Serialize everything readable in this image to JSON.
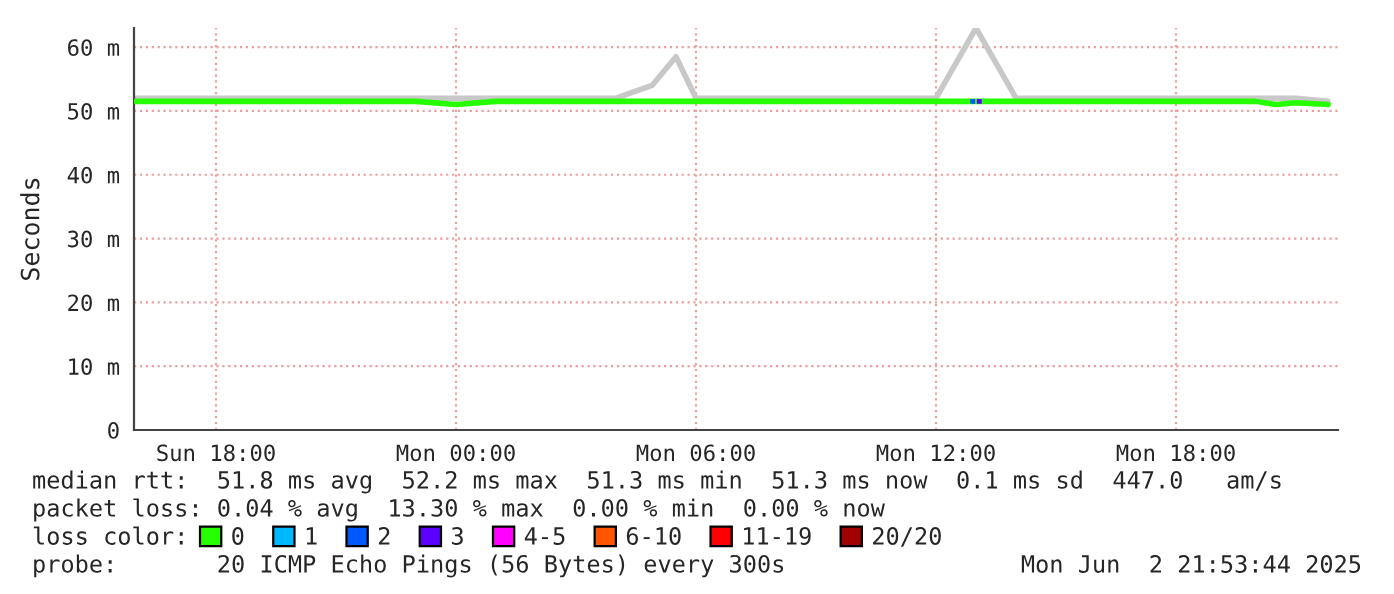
{
  "chart_data": {
    "type": "line",
    "ylabel": "Seconds",
    "x": [
      "2025-06-01T16:00",
      "2025-06-01T17:00",
      "2025-06-01T18:00",
      "2025-06-01T19:00",
      "2025-06-01T20:00",
      "2025-06-01T21:00",
      "2025-06-01T22:00",
      "2025-06-01T23:00",
      "2025-06-02T00:00",
      "2025-06-02T01:00",
      "2025-06-02T02:00",
      "2025-06-02T03:00",
      "2025-06-02T04:00",
      "2025-06-02T04:54",
      "2025-06-02T05:30",
      "2025-06-02T06:00",
      "2025-06-02T07:00",
      "2025-06-02T08:00",
      "2025-06-02T09:00",
      "2025-06-02T10:00",
      "2025-06-02T11:00",
      "2025-06-02T12:00",
      "2025-06-02T13:00",
      "2025-06-02T14:00",
      "2025-06-02T15:00",
      "2025-06-02T16:00",
      "2025-06-02T17:00",
      "2025-06-02T18:00",
      "2025-06-02T19:00",
      "2025-06-02T20:00",
      "2025-06-02T20:30",
      "2025-06-02T21:00",
      "2025-06-02T21:48"
    ],
    "xlim": [
      "2025-06-01T15:57",
      "2025-06-02T22:03"
    ],
    "xticks": [
      {
        "value": "2025-06-01T18:00",
        "label": "Sun 18:00"
      },
      {
        "value": "2025-06-02T00:00",
        "label": "Mon 00:00"
      },
      {
        "value": "2025-06-02T06:00",
        "label": "Mon 06:00"
      },
      {
        "value": "2025-06-02T12:00",
        "label": "Mon 12:00"
      },
      {
        "value": "2025-06-02T18:00",
        "label": "Mon 18:00"
      }
    ],
    "ylim": [
      0,
      63
    ],
    "yticks": [
      {
        "value": 0,
        "label": "0"
      },
      {
        "value": 10,
        "label": "10 m"
      },
      {
        "value": 20,
        "label": "20 m"
      },
      {
        "value": 30,
        "label": "30 m"
      },
      {
        "value": 40,
        "label": "40 m"
      },
      {
        "value": 50,
        "label": "50 m"
      },
      {
        "value": 60,
        "label": "60 m"
      }
    ],
    "grid": true,
    "legend": "bottom",
    "legend_title": "loss color:",
    "series": [
      {
        "color": "#c8c8c8",
        "values": [
          52,
          52,
          52,
          52,
          52,
          52,
          52,
          52,
          52,
          52,
          52,
          52,
          52,
          54,
          58.5,
          52,
          52,
          52,
          52,
          52,
          52,
          52,
          63,
          52,
          52,
          52,
          52,
          52,
          52,
          52,
          52,
          52,
          51.5
        ]
      },
      {
        "name": "0",
        "color": "#26ff00",
        "values": [
          51.5,
          51.5,
          51.5,
          51.5,
          51.5,
          51.5,
          51.5,
          51.5,
          51.0,
          51.5,
          51.5,
          51.5,
          51.5,
          51.5,
          51.5,
          51.5,
          51.5,
          51.5,
          51.5,
          51.5,
          51.5,
          51.5,
          51.5,
          51.5,
          51.5,
          51.5,
          51.5,
          51.5,
          51.5,
          51.5,
          51.0,
          51.3,
          51.0
        ]
      },
      {
        "name": "1",
        "color": "#00b8ff",
        "type": "scatter",
        "values": [
          null,
          null,
          null,
          null,
          null,
          null,
          null,
          null,
          null,
          null,
          null,
          null,
          null,
          null,
          null,
          null,
          null,
          null,
          null,
          null,
          null,
          null,
          null,
          null,
          null,
          null,
          null,
          null,
          null,
          null,
          null,
          null,
          null
        ]
      },
      {
        "name": "2",
        "color": "#0059ff",
        "type": "scatter",
        "x": [
          "2025-06-02T12:55"
        ],
        "values": [
          51.5
        ]
      },
      {
        "name": "3",
        "color": "#5e00ff",
        "type": "scatter",
        "x": [
          "2025-06-02T13:05"
        ],
        "values": [
          51.5
        ]
      },
      {
        "name": "4-5",
        "color": "#ff00ff",
        "type": "scatter",
        "values": [
          null,
          null,
          null,
          null,
          null,
          null,
          null,
          null,
          null,
          null,
          null,
          null,
          null,
          null,
          null,
          null,
          null,
          null,
          null,
          null,
          null,
          null,
          null,
          null,
          null,
          null,
          null,
          null,
          null,
          null,
          null,
          null,
          null
        ]
      },
      {
        "name": "6-10",
        "color": "#ff5500",
        "type": "scatter",
        "values": [
          null,
          null,
          null,
          null,
          null,
          null,
          null,
          null,
          null,
          null,
          null,
          null,
          null,
          null,
          null,
          null,
          null,
          null,
          null,
          null,
          null,
          null,
          null,
          null,
          null,
          null,
          null,
          null,
          null,
          null,
          null,
          null,
          null
        ]
      },
      {
        "name": "11-19",
        "color": "#ff0000",
        "type": "scatter",
        "values": [
          null,
          null,
          null,
          null,
          null,
          null,
          null,
          null,
          null,
          null,
          null,
          null,
          null,
          null,
          null,
          null,
          null,
          null,
          null,
          null,
          null,
          null,
          null,
          null,
          null,
          null,
          null,
          null,
          null,
          null,
          null,
          null,
          null
        ]
      },
      {
        "name": "20/20",
        "color": "#a10000",
        "type": "scatter",
        "values": [
          null,
          null,
          null,
          null,
          null,
          null,
          null,
          null,
          null,
          null,
          null,
          null,
          null,
          null,
          null,
          null,
          null,
          null,
          null,
          null,
          null,
          null,
          null,
          null,
          null,
          null,
          null,
          null,
          null,
          null,
          null,
          null,
          null
        ]
      }
    ],
    "annotations": [
      "median rtt:  51.8 ms avg  52.2 ms max  51.3 ms min  51.3 ms now  0.1 ms sd  447.0   am/s",
      "packet loss: 0.04 % avg  13.30 % max  0.00 % min  0.00 % now",
      "probe:       20 ICMP Echo Pings (56 Bytes) every 300s",
      "Mon Jun  2 21:53:44 2025"
    ]
  }
}
